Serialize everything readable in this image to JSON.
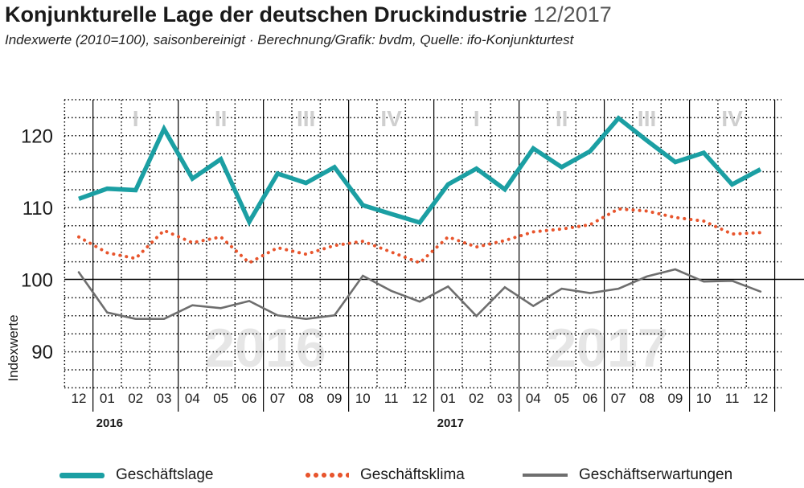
{
  "header": {
    "title": "Konjunkturelle Lage der deutschen Druckindustrie",
    "date": "12/2017",
    "subtitle": "Indexwerte (2010=100), saisonbereinigt · Berechnung/Grafik: bvdm, Quelle: ifo-Konjunkturtest"
  },
  "chart_data": {
    "type": "line",
    "ylabel": "Indexwerte",
    "ylim": [
      86,
      125
    ],
    "yticks": [
      90,
      100,
      110,
      120
    ],
    "categories": [
      "12",
      "01",
      "02",
      "03",
      "04",
      "05",
      "06",
      "07",
      "08",
      "09",
      "10",
      "11",
      "12",
      "01",
      "02",
      "03",
      "04",
      "05",
      "06",
      "07",
      "08",
      "09",
      "10",
      "11",
      "12"
    ],
    "years": [
      {
        "label": "2016",
        "start_index": 1
      },
      {
        "label": "2017",
        "start_index": 13
      }
    ],
    "watermarks": [
      "2016",
      "2017"
    ],
    "quarters": [
      "I",
      "II",
      "III",
      "IV",
      "I",
      "II",
      "III",
      "IV"
    ],
    "series": [
      {
        "name": "Geschäftslage",
        "color": "#1b9fa3",
        "style": "solid-thick",
        "values": [
          111.2,
          112.6,
          112.4,
          120.9,
          114.0,
          116.7,
          108.0,
          114.7,
          113.4,
          115.6,
          110.3,
          109.1,
          107.9,
          113.2,
          115.4,
          112.5,
          118.2,
          115.6,
          117.8,
          122.4,
          119.3,
          116.3,
          117.6,
          113.2,
          115.3
        ]
      },
      {
        "name": "Geschäftsklima",
        "color": "#e8552d",
        "style": "dotted",
        "values": [
          105.9,
          103.7,
          102.9,
          106.8,
          105.1,
          105.9,
          102.3,
          104.4,
          103.5,
          104.7,
          105.3,
          103.8,
          102.3,
          105.9,
          104.5,
          105.4,
          106.6,
          107.0,
          107.6,
          109.8,
          109.5,
          108.6,
          108.1,
          106.3,
          106.5
        ]
      },
      {
        "name": "Geschäftserwartungen",
        "color": "#6e6e6e",
        "style": "solid",
        "values": [
          101.0,
          95.4,
          94.5,
          94.5,
          96.4,
          96.0,
          97.0,
          95.0,
          94.5,
          95.0,
          100.5,
          98.4,
          96.9,
          99.0,
          94.9,
          98.9,
          96.3,
          98.7,
          98.1,
          98.7,
          100.4,
          101.4,
          99.7,
          99.8,
          98.3
        ]
      }
    ]
  }
}
